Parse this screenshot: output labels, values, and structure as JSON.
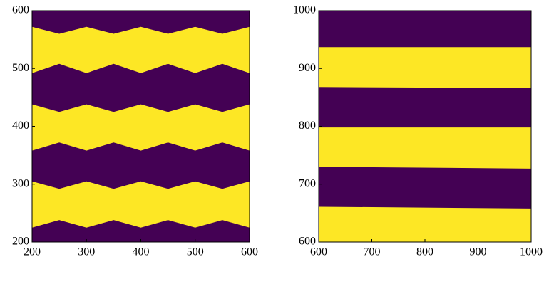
{
  "chart_data": [
    {
      "type": "band",
      "background_color": "#440154",
      "band_color": "#fde725",
      "x": [
        200,
        250,
        300,
        350,
        400,
        450,
        500,
        550,
        600
      ],
      "bands": [
        {
          "upper": [
            572,
            560,
            572,
            560,
            572,
            560,
            572,
            560,
            572
          ],
          "lower": [
            492,
            508,
            492,
            508,
            492,
            508,
            492,
            508,
            492
          ]
        },
        {
          "upper": [
            438,
            425,
            438,
            425,
            438,
            425,
            438,
            425,
            438
          ],
          "lower": [
            358,
            372,
            358,
            372,
            358,
            372,
            358,
            372,
            358
          ]
        },
        {
          "upper": [
            305,
            292,
            305,
            292,
            305,
            292,
            305,
            292,
            305
          ],
          "lower": [
            225,
            238,
            225,
            238,
            225,
            238,
            225,
            238,
            225
          ]
        }
      ],
      "xlim": [
        200,
        600
      ],
      "ylim": [
        200,
        600
      ],
      "xticks": [
        200,
        300,
        400,
        500,
        600
      ],
      "yticks": [
        200,
        300,
        400,
        500,
        600
      ]
    },
    {
      "type": "band",
      "background_color": "#440154",
      "band_color": "#fde725",
      "x": [
        600,
        1000
      ],
      "bands": [
        {
          "upper": [
            937,
            937
          ],
          "lower": [
            868,
            866
          ]
        },
        {
          "upper": [
            798,
            798
          ],
          "lower": [
            730,
            727
          ]
        },
        {
          "upper": [
            661,
            658
          ],
          "lower": [
            600,
            600
          ]
        }
      ],
      "xlim": [
        600,
        1000
      ],
      "ylim": [
        600,
        1000
      ],
      "xticks": [
        600,
        700,
        800,
        900,
        1000
      ],
      "yticks": [
        600,
        700,
        800,
        900,
        1000
      ]
    }
  ]
}
